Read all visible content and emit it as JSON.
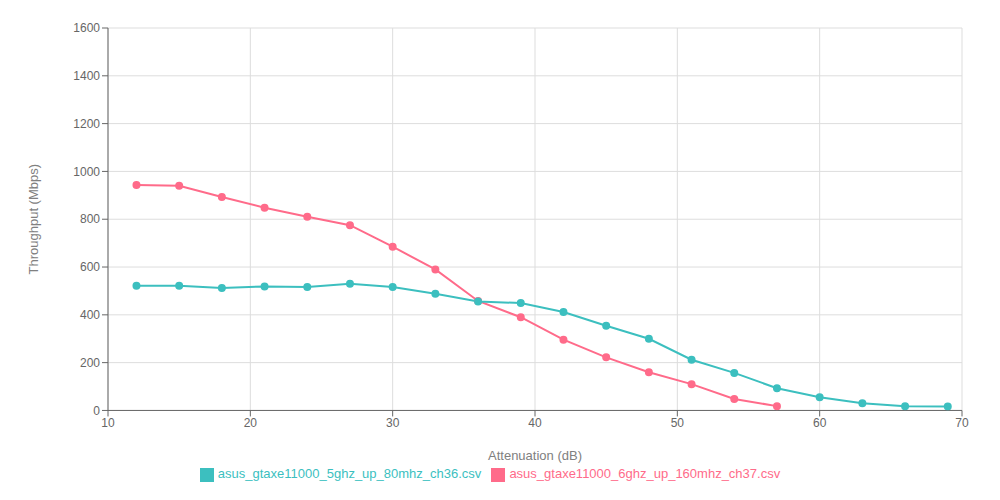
{
  "chart_data": {
    "type": "line",
    "xlabel": "Attenuation (dB)",
    "ylabel": "Throughput (Mbps)",
    "xlim": [
      10,
      70
    ],
    "ylim": [
      0,
      1600
    ],
    "xticks": [
      10,
      20,
      30,
      40,
      50,
      60,
      70
    ],
    "yticks": [
      0,
      200,
      400,
      600,
      800,
      1000,
      1200,
      1400,
      1600
    ],
    "grid": true,
    "legend": "bottom",
    "marker": "circle",
    "line_style": "solid",
    "series": [
      {
        "name": "asus_gtaxe11000_6ghz_up_160mhz_ch37.csv",
        "color": "#FF6B8A",
        "x": [
          12,
          15,
          18,
          21,
          24,
          27,
          30,
          33,
          36,
          39,
          42,
          45,
          48,
          51,
          54,
          57
        ],
        "values": [
          943,
          940,
          893,
          848,
          810,
          775,
          685,
          590,
          458,
          390,
          296,
          222,
          160,
          110,
          48,
          18
        ]
      },
      {
        "name": "asus_gtaxe11000_5ghz_up_80mhz_ch36.csv",
        "color": "#3CBFBF",
        "x": [
          12,
          15,
          18,
          21,
          24,
          27,
          30,
          33,
          36,
          39,
          42,
          45,
          48,
          51,
          54,
          57,
          60,
          63,
          66,
          69
        ],
        "values": [
          522,
          522,
          512,
          519,
          516,
          530,
          516,
          488,
          456,
          449,
          412,
          354,
          300,
          212,
          157,
          93,
          55,
          30,
          18,
          16
        ]
      }
    ]
  }
}
